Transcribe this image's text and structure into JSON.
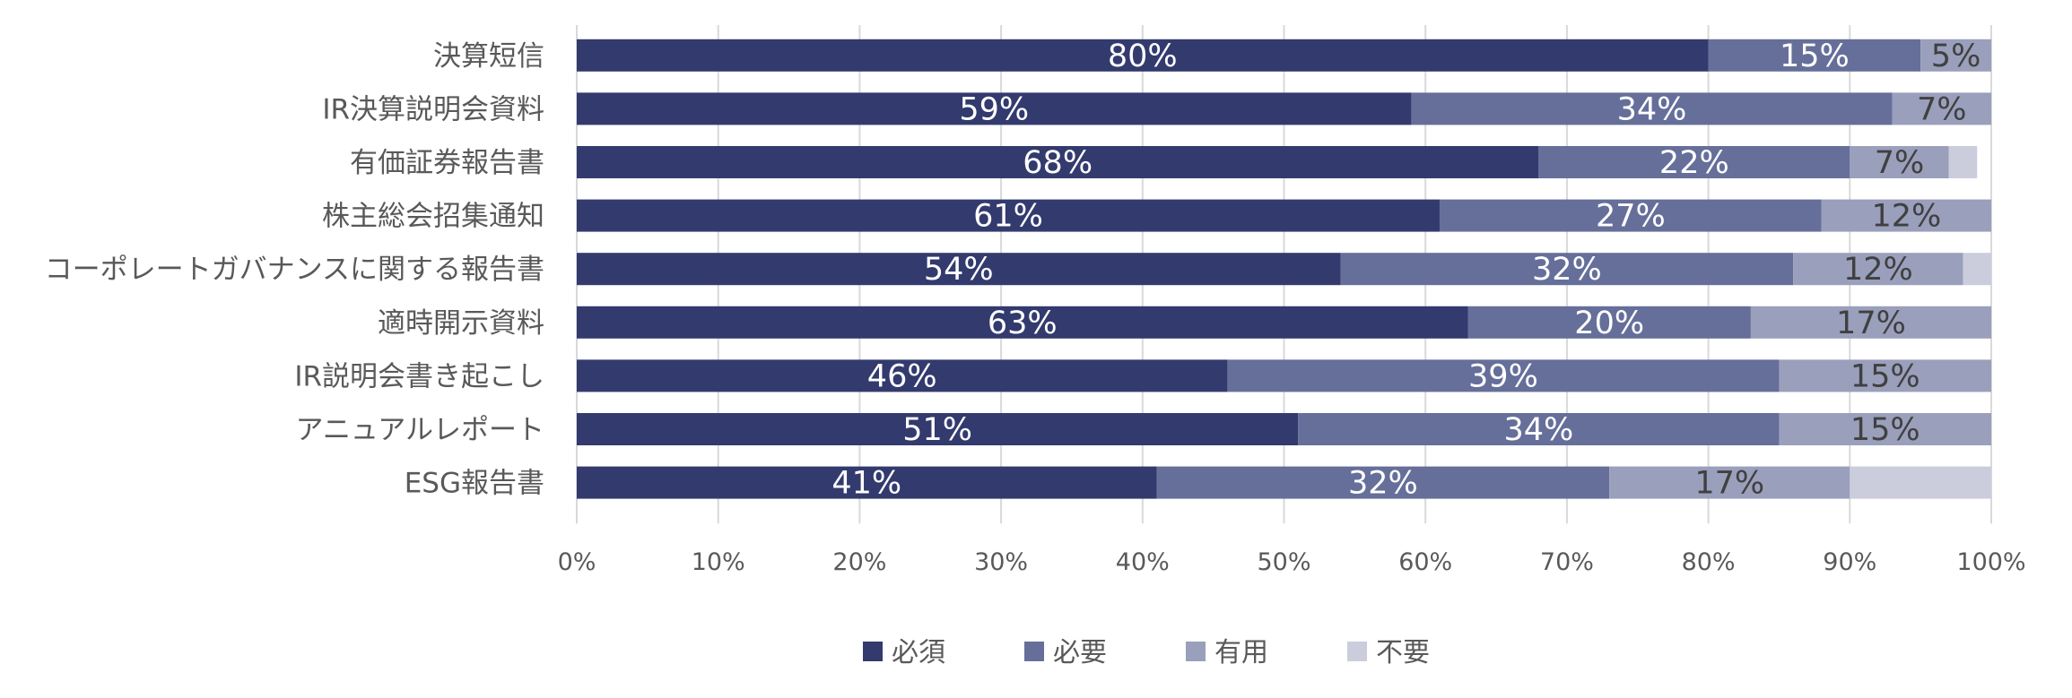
{
  "chart_data": {
    "type": "bar",
    "orientation": "horizontal",
    "stacked": true,
    "categories": [
      "決算短信",
      "IR決算説明会資料",
      "有価証券報告書",
      "株主総会招集通知",
      "コーポレートガバナンスに関する報告書",
      "適時開示資料",
      "IR説明会書き起こし",
      "アニュアルレポート",
      "ESG報告書"
    ],
    "series": [
      {
        "name": "必須",
        "color": "#333A6E",
        "label_color": "#ffffff",
        "values": [
          80,
          59,
          68,
          61,
          54,
          63,
          46,
          51,
          41
        ]
      },
      {
        "name": "必要",
        "color": "#666F9A",
        "label_color": "#ffffff",
        "values": [
          15,
          34,
          22,
          27,
          32,
          20,
          39,
          34,
          32
        ]
      },
      {
        "name": "有用",
        "color": "#9A9FBC",
        "label_color": "#404040",
        "values": [
          5,
          7,
          7,
          12,
          12,
          17,
          15,
          15,
          17
        ]
      },
      {
        "name": "不要",
        "color": "#CBCDDD",
        "label_color": "#404040",
        "values": [
          0,
          0,
          2,
          0,
          2,
          0,
          0,
          0,
          10
        ]
      }
    ],
    "data_labels": [
      [
        "80%",
        "59%",
        "68%",
        "61%",
        "54%",
        "63%",
        "46%",
        "51%",
        "41%"
      ],
      [
        "15%",
        "34%",
        "22%",
        "27%",
        "32%",
        "20%",
        "39%",
        "34%",
        "32%"
      ],
      [
        "5%",
        "7%",
        "7%",
        "12%",
        "12%",
        "17%",
        "15%",
        "15%",
        "17%"
      ],
      [
        "",
        "",
        "",
        "",
        "",
        "",
        "",
        "",
        ""
      ]
    ],
    "x_ticks": [
      "0%",
      "10%",
      "20%",
      "30%",
      "40%",
      "50%",
      "60%",
      "70%",
      "80%",
      "90%",
      "100%"
    ],
    "xlim": [
      0,
      100
    ],
    "grid": true,
    "legend_position": "bottom",
    "title": "",
    "xlabel": "",
    "ylabel": ""
  }
}
